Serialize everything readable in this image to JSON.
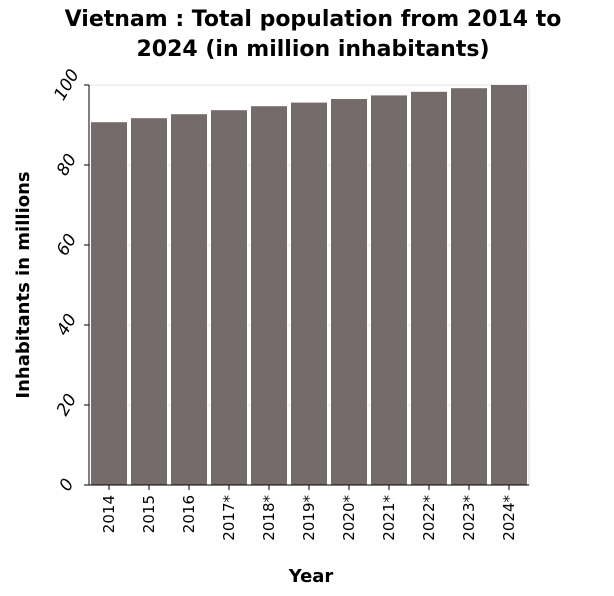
{
  "chart_data": {
    "type": "bar",
    "title_lines": [
      "Vietnam : Total population from 2014 to",
      "2024 (in million inhabitants)"
    ],
    "xlabel": "Year",
    "ylabel": "Inhabitants in millions",
    "categories": [
      "2014",
      "2015",
      "2016",
      "2017*",
      "2018*",
      "2019*",
      "2020*",
      "2021*",
      "2022*",
      "2023*",
      "2024*"
    ],
    "values": [
      90.7,
      91.7,
      92.7,
      93.7,
      94.7,
      95.6,
      96.5,
      97.4,
      98.3,
      99.2,
      100.0
    ],
    "ylim": [
      0,
      100
    ],
    "yticks": [
      0,
      20,
      40,
      60,
      80,
      100
    ],
    "grid": true,
    "bar_color": "#756b6b"
  }
}
